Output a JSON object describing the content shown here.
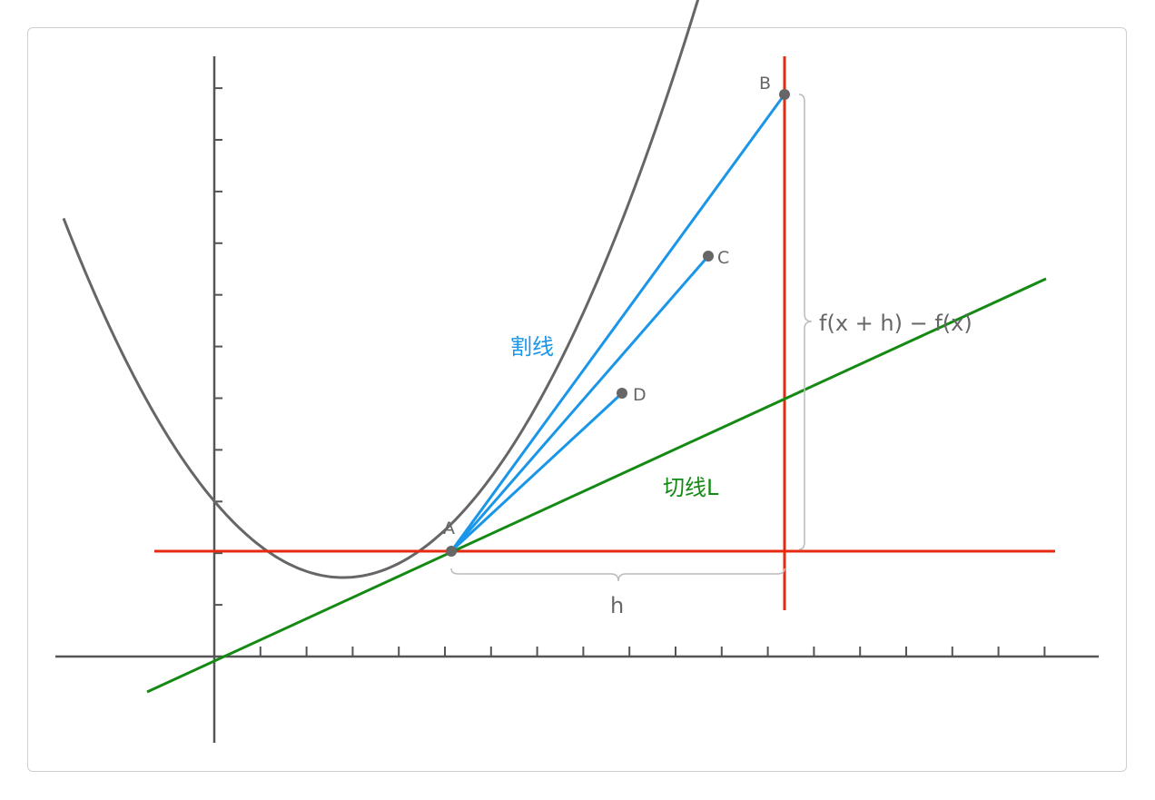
{
  "diagram": {
    "points": {
      "A": "A",
      "B": "B",
      "C": "C",
      "D": "D"
    },
    "secant_label": "割线",
    "tangent_label": "切线L",
    "h_label": "h",
    "delta_label": "f(x + h) − f(x)",
    "colors": {
      "curve": "#666666",
      "axis": "#555555",
      "secant": "#1a96e8",
      "tangent": "#148a14",
      "reference": "#e62a10",
      "brace": "#bbbbbb",
      "point": "#666666"
    }
  }
}
